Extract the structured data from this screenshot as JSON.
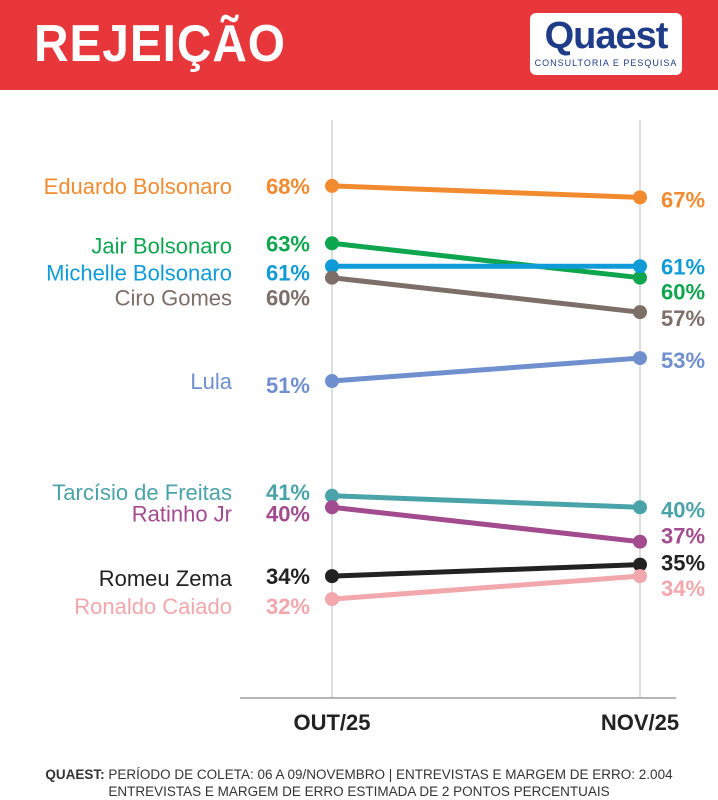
{
  "header": {
    "title": "REJEIÇÃO",
    "logo_name": "Quaest",
    "logo_sub": "CONSULTORIA E PESQUISA",
    "bg_color": "#e8373b"
  },
  "footer": {
    "source": "QUAEST:",
    "note": "PERÍODO DE COLETA: 06 A 09/NOVEMBRO | ENTREVISTAS E MARGEM DE ERRO: 2.004 ENTREVISTAS E MARGEM DE ERRO ESTIMADA DE 2 PONTOS PERCENTUAIS"
  },
  "chart_data": {
    "type": "line",
    "categories": [
      "OUT/25",
      "NOV/25"
    ],
    "ylim": [
      28,
      72
    ],
    "series": [
      {
        "name": "Eduardo Bolsonaro",
        "values": [
          68,
          67
        ],
        "labels": [
          "68%",
          "67%"
        ],
        "color": "#f28b30"
      },
      {
        "name": "Jair Bolsonaro",
        "values": [
          63,
          60
        ],
        "labels": [
          "63%",
          "60%"
        ],
        "color": "#0ea54f"
      },
      {
        "name": "Michelle Bolsonaro",
        "values": [
          61,
          61
        ],
        "labels": [
          "61%",
          "61%"
        ],
        "color": "#0f9bd7"
      },
      {
        "name": "Ciro Gomes",
        "values": [
          60,
          57
        ],
        "labels": [
          "60%",
          "57%"
        ],
        "color": "#7d6e68"
      },
      {
        "name": "Lula",
        "values": [
          51,
          53
        ],
        "labels": [
          "51%",
          "53%"
        ],
        "color": "#6f8fcf"
      },
      {
        "name": "Tarcísio de Freitas",
        "values": [
          41,
          40
        ],
        "labels": [
          "41%",
          "40%"
        ],
        "color": "#4aa3a8"
      },
      {
        "name": "Ratinho Jr",
        "values": [
          40,
          37
        ],
        "labels": [
          "40%",
          "37%"
        ],
        "color": "#a24b8e"
      },
      {
        "name": "Romeu Zema",
        "values": [
          34,
          35
        ],
        "labels": [
          "34%",
          "35%"
        ],
        "color": "#222222"
      },
      {
        "name": "Ronaldo Caiado",
        "values": [
          32,
          34
        ],
        "labels": [
          "32%",
          "34%"
        ],
        "color": "#f2a7ac"
      }
    ]
  }
}
